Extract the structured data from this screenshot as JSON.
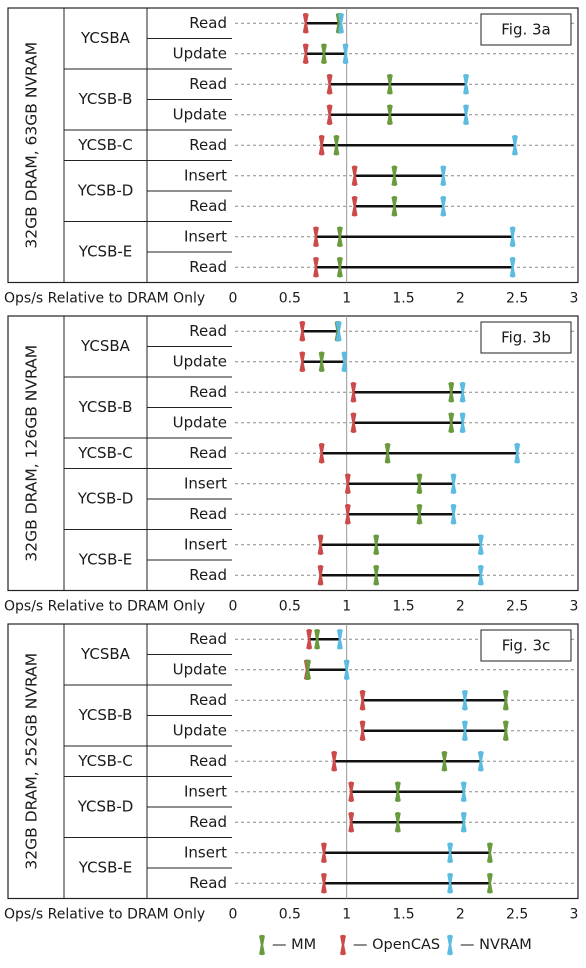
{
  "chart_data": [
    {
      "type": "dumbbell",
      "fig_label": "Fig. 3a",
      "group_label": "32GB DRAM, 63GB NVRAM",
      "xlabel": "Ops/s Relative to DRAM Only",
      "xlim": [
        0,
        3
      ],
      "xticks": [
        "0",
        "0.5",
        "1",
        "1.5",
        "2",
        "2.5",
        "3"
      ],
      "reference_line": 1,
      "rows": [
        {
          "workload": "YCSBA",
          "operation": "Read",
          "MM": 0.93,
          "OpenCAS": 0.64,
          "NVRAM": 0.95
        },
        {
          "workload": "YCSBA",
          "operation": "Update",
          "MM": 0.8,
          "OpenCAS": 0.64,
          "NVRAM": 0.99
        },
        {
          "workload": "YCSB-B",
          "operation": "Read",
          "MM": 1.38,
          "OpenCAS": 0.85,
          "NVRAM": 2.05
        },
        {
          "workload": "YCSB-B",
          "operation": "Update",
          "MM": 1.38,
          "OpenCAS": 0.85,
          "NVRAM": 2.05
        },
        {
          "workload": "YCSB-C",
          "operation": "Read",
          "MM": 0.91,
          "OpenCAS": 0.78,
          "NVRAM": 2.48
        },
        {
          "workload": "YCSB-D",
          "operation": "Insert",
          "MM": 1.42,
          "OpenCAS": 1.07,
          "NVRAM": 1.85
        },
        {
          "workload": "YCSB-D",
          "operation": "Read",
          "MM": 1.42,
          "OpenCAS": 1.07,
          "NVRAM": 1.85
        },
        {
          "workload": "YCSB-E",
          "operation": "Insert",
          "MM": 0.94,
          "OpenCAS": 0.73,
          "NVRAM": 2.46
        },
        {
          "workload": "YCSB-E",
          "operation": "Read",
          "MM": 0.94,
          "OpenCAS": 0.73,
          "NVRAM": 2.46
        }
      ]
    },
    {
      "type": "dumbbell",
      "fig_label": "Fig. 3b",
      "group_label": "32GB DRAM, 126GB NVRAM",
      "xlabel": "Ops/s Relative to DRAM Only",
      "xlim": [
        0,
        3
      ],
      "xticks": [
        "0",
        "0.5",
        "1",
        "1.5",
        "2",
        "2.5",
        "3"
      ],
      "reference_line": 1,
      "rows": [
        {
          "workload": "YCSBA",
          "operation": "Read",
          "MM": 0.92,
          "OpenCAS": 0.61,
          "NVRAM": 0.93
        },
        {
          "workload": "YCSBA",
          "operation": "Update",
          "MM": 0.78,
          "OpenCAS": 0.61,
          "NVRAM": 0.98
        },
        {
          "workload": "YCSB-B",
          "operation": "Read",
          "MM": 1.92,
          "OpenCAS": 1.06,
          "NVRAM": 2.02
        },
        {
          "workload": "YCSB-B",
          "operation": "Update",
          "MM": 1.92,
          "OpenCAS": 1.06,
          "NVRAM": 2.02
        },
        {
          "workload": "YCSB-C",
          "operation": "Read",
          "MM": 1.36,
          "OpenCAS": 0.78,
          "NVRAM": 2.5
        },
        {
          "workload": "YCSB-D",
          "operation": "Insert",
          "MM": 1.64,
          "OpenCAS": 1.01,
          "NVRAM": 1.94
        },
        {
          "workload": "YCSB-D",
          "operation": "Read",
          "MM": 1.64,
          "OpenCAS": 1.01,
          "NVRAM": 1.94
        },
        {
          "workload": "YCSB-E",
          "operation": "Insert",
          "MM": 1.26,
          "OpenCAS": 0.77,
          "NVRAM": 2.18
        },
        {
          "workload": "YCSB-E",
          "operation": "Read",
          "MM": 1.26,
          "OpenCAS": 0.77,
          "NVRAM": 2.18
        }
      ]
    },
    {
      "type": "dumbbell",
      "fig_label": "Fig. 3c",
      "group_label": "32GB DRAM, 252GB NVRAM",
      "xlabel": "Ops/s Relative to DRAM Only",
      "xlim": [
        0,
        3
      ],
      "xticks": [
        "0",
        "0.5",
        "1",
        "1.5",
        "2",
        "2.5",
        "3"
      ],
      "reference_line": 1,
      "rows": [
        {
          "workload": "YCSBA",
          "operation": "Read",
          "MM": 0.74,
          "OpenCAS": 0.67,
          "NVRAM": 0.94
        },
        {
          "workload": "YCSBA",
          "operation": "Update",
          "MM": 0.66,
          "OpenCAS": 0.65,
          "NVRAM": 1.0
        },
        {
          "workload": "YCSB-B",
          "operation": "Read",
          "MM": 2.4,
          "OpenCAS": 1.14,
          "NVRAM": 2.04
        },
        {
          "workload": "YCSB-B",
          "operation": "Update",
          "MM": 2.4,
          "OpenCAS": 1.14,
          "NVRAM": 2.04
        },
        {
          "workload": "YCSB-C",
          "operation": "Read",
          "MM": 1.86,
          "OpenCAS": 0.89,
          "NVRAM": 2.18
        },
        {
          "workload": "YCSB-D",
          "operation": "Insert",
          "MM": 1.45,
          "OpenCAS": 1.04,
          "NVRAM": 2.03
        },
        {
          "workload": "YCSB-D",
          "operation": "Read",
          "MM": 1.45,
          "OpenCAS": 1.04,
          "NVRAM": 2.03
        },
        {
          "workload": "YCSB-E",
          "operation": "Insert",
          "MM": 2.26,
          "OpenCAS": 0.8,
          "NVRAM": 1.91
        },
        {
          "workload": "YCSB-E",
          "operation": "Read",
          "MM": 2.26,
          "OpenCAS": 0.8,
          "NVRAM": 1.91
        }
      ]
    }
  ],
  "legend": [
    {
      "key": "MM",
      "label": "— MM",
      "color": "#6a9a3e"
    },
    {
      "key": "OpenCAS",
      "label": "— OpenCAS",
      "color": "#cc4a4a"
    },
    {
      "key": "NVRAM",
      "label": "— NVRAM",
      "color": "#5bbbe0"
    }
  ]
}
